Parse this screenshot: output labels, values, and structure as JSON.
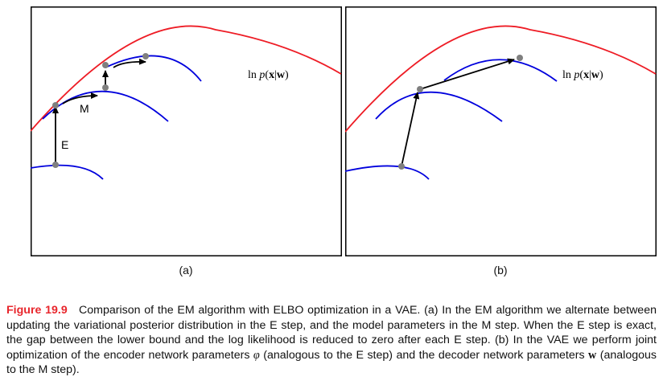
{
  "figure": {
    "panel_a": {
      "label_text_prefix": "ln ",
      "label_text_p": "p",
      "label_text_x": "x",
      "label_text_w": "w",
      "e_label": "E",
      "m_label": "M",
      "sublabel": "(a)"
    },
    "panel_b": {
      "label_text_prefix": "ln ",
      "label_text_p": "p",
      "label_text_x": "x",
      "label_text_w": "w",
      "sublabel": "(b)"
    },
    "colors": {
      "likelihood_curve": "#ee1c25",
      "elbo_curve": "#0000dd",
      "point": "#7f7f7f",
      "arrow": "#000000",
      "frame": "#000000",
      "caption_label": "#e8262c"
    }
  },
  "caption": {
    "label": "Figure 19.9",
    "part1": "Comparison of the EM algorithm with ELBO optimization in a VAE. (a) In the EM algorithm we alternate between updating the variational posterior distribution in the E step, and the model parameters in the M step. When the E step is exact, the gap between the lower bound and the log likelihood is reduced to zero after each E step. (b) In the VAE we perform joint optimization of the encoder network parameters ",
    "phi": "φ",
    "part2": " (analogous to the E step) and the decoder network parameters ",
    "w": "w",
    "part3": " (analogous to the M step)."
  }
}
